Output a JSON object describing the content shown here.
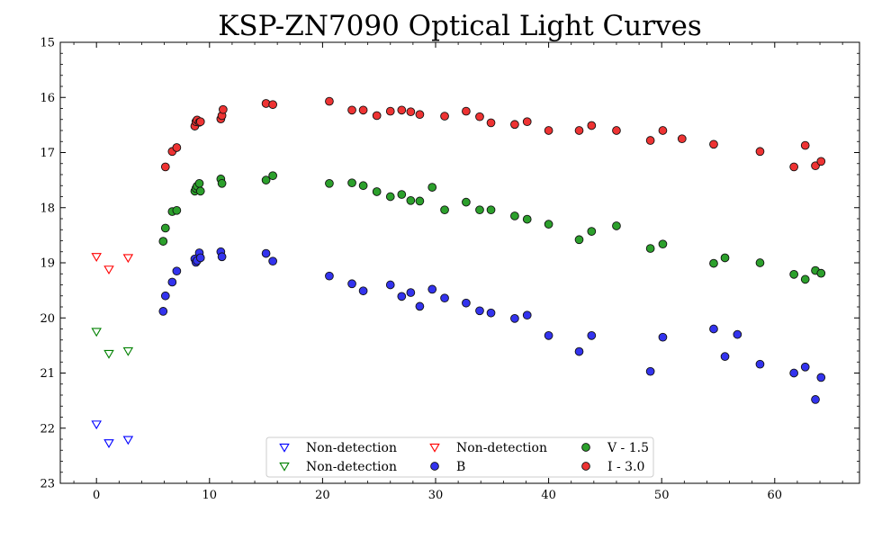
{
  "chart_data": {
    "type": "scatter",
    "title": "KSP-ZN7090 Optical Light Curves",
    "xlabel": "",
    "ylabel": "",
    "xlim": [
      -3.2,
      67.5
    ],
    "ylim": [
      15,
      23
    ],
    "y_inverted": true,
    "grid": false,
    "legend_position": "lower-center",
    "x_ticks": [
      "0",
      "10",
      "20",
      "30",
      "40",
      "50",
      "60"
    ],
    "y_ticks": [
      "15",
      "16",
      "17",
      "18",
      "19",
      "20",
      "21",
      "22",
      "23"
    ],
    "series": [
      {
        "name": "Non-detection",
        "marker": "triangle-down-open",
        "color": "#0000ff",
        "x": [
          0.0,
          1.1,
          2.8
        ],
        "y": [
          21.93,
          22.27,
          22.21
        ]
      },
      {
        "name": "Non-detection",
        "marker": "triangle-down-open",
        "color": "#008000",
        "x": [
          0.0,
          1.1,
          2.8
        ],
        "y": [
          20.25,
          20.65,
          20.6
        ]
      },
      {
        "name": "Non-detection",
        "marker": "triangle-down-open",
        "color": "#ff0000",
        "x": [
          0.0,
          1.1,
          2.8
        ],
        "y": [
          18.89,
          19.12,
          18.91
        ]
      },
      {
        "name": "B",
        "marker": "circle",
        "color": "#3333ee",
        "x": [
          5.9,
          6.1,
          6.7,
          7.1,
          8.7,
          8.8,
          8.9,
          9.1,
          9.2,
          11.0,
          11.1,
          15.0,
          15.6,
          20.6,
          22.6,
          23.6,
          26.0,
          27.0,
          27.8,
          28.6,
          29.7,
          30.8,
          32.7,
          33.9,
          34.9,
          37.0,
          38.1,
          40.0,
          42.7,
          43.8,
          49.0,
          50.1,
          54.6,
          55.6,
          56.7,
          58.7,
          61.7,
          62.7,
          63.6,
          64.1
        ],
        "y": [
          19.88,
          19.6,
          19.35,
          19.15,
          18.93,
          18.99,
          18.96,
          18.82,
          18.91,
          18.8,
          18.89,
          18.83,
          18.97,
          19.24,
          19.38,
          19.51,
          19.4,
          19.61,
          19.54,
          19.79,
          19.48,
          19.64,
          19.73,
          19.87,
          19.91,
          20.01,
          19.95,
          20.32,
          20.61,
          20.32,
          20.97,
          20.35,
          20.2,
          20.7,
          20.3,
          20.84,
          21.0,
          20.89,
          21.48,
          21.08
        ]
      },
      {
        "name": "V - 1.5",
        "marker": "circle",
        "color": "#2ca02c",
        "x": [
          5.9,
          6.1,
          6.7,
          7.1,
          8.7,
          8.8,
          8.9,
          9.1,
          9.2,
          11.0,
          11.1,
          15.0,
          15.6,
          20.6,
          22.6,
          23.6,
          24.8,
          26.0,
          27.0,
          27.8,
          28.6,
          29.7,
          30.8,
          32.7,
          33.9,
          34.9,
          37.0,
          38.1,
          40.0,
          42.7,
          43.8,
          46.0,
          49.0,
          50.1,
          54.6,
          55.6,
          58.7,
          61.7,
          62.7,
          63.6,
          64.1
        ],
        "y": [
          18.61,
          18.37,
          18.07,
          18.05,
          17.7,
          17.65,
          17.61,
          17.56,
          17.7,
          17.48,
          17.56,
          17.5,
          17.42,
          17.56,
          17.55,
          17.6,
          17.71,
          17.8,
          17.76,
          17.87,
          17.88,
          17.63,
          18.04,
          17.9,
          18.04,
          18.04,
          18.15,
          18.21,
          18.3,
          18.58,
          18.43,
          18.33,
          18.74,
          18.66,
          19.01,
          18.91,
          19.0,
          19.21,
          19.3,
          19.14,
          19.19
        ]
      },
      {
        "name": "I - 3.0",
        "marker": "circle",
        "color": "#ee3333",
        "x": [
          6.1,
          6.7,
          7.1,
          8.7,
          8.8,
          8.9,
          9.1,
          9.2,
          11.0,
          11.1,
          11.2,
          15.0,
          15.6,
          20.6,
          22.6,
          23.6,
          24.8,
          26.0,
          27.0,
          27.8,
          28.6,
          30.8,
          32.7,
          33.9,
          34.9,
          37.0,
          38.1,
          40.0,
          42.7,
          43.8,
          46.0,
          49.0,
          50.1,
          51.8,
          54.6,
          58.7,
          61.7,
          62.7,
          63.6,
          64.1
        ],
        "y": [
          17.26,
          16.98,
          16.91,
          16.52,
          16.44,
          16.41,
          16.45,
          16.44,
          16.39,
          16.33,
          16.22,
          16.11,
          16.13,
          16.07,
          16.23,
          16.23,
          16.33,
          16.25,
          16.23,
          16.26,
          16.31,
          16.34,
          16.25,
          16.35,
          16.46,
          16.49,
          16.44,
          16.6,
          16.6,
          16.51,
          16.6,
          16.78,
          16.6,
          16.75,
          16.85,
          16.98,
          17.26,
          16.87,
          17.24,
          17.16
        ]
      }
    ]
  }
}
